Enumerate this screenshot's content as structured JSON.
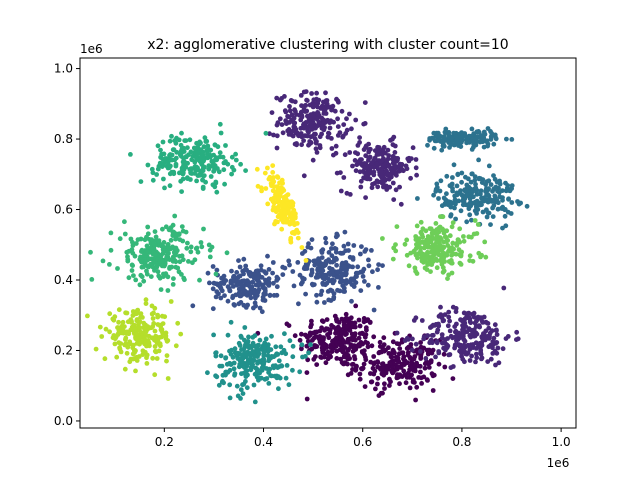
{
  "chart_data": {
    "type": "scatter",
    "title": "x2: agglomerative clustering with cluster count=10",
    "xlabel": "",
    "ylabel": "",
    "x_offset_label": "1e6",
    "y_offset_label": "1e6",
    "xlim": [
      0.03,
      1.03
    ],
    "ylim": [
      -0.02,
      1.03
    ],
    "x_ticks": [
      {
        "value": 0.2,
        "label": "0.2"
      },
      {
        "value": 0.4,
        "label": "0.4"
      },
      {
        "value": 0.6,
        "label": "0.6"
      },
      {
        "value": 0.8,
        "label": "0.8"
      },
      {
        "value": 1.0,
        "label": "1.0"
      }
    ],
    "y_ticks": [
      {
        "value": 0.0,
        "label": "0.0"
      },
      {
        "value": 0.2,
        "label": "0.2"
      },
      {
        "value": 0.4,
        "label": "0.4"
      },
      {
        "value": 0.6,
        "label": "0.6"
      },
      {
        "value": 0.8,
        "label": "0.8"
      },
      {
        "value": 1.0,
        "label": "1.0"
      }
    ],
    "grid": false,
    "legend": "none",
    "clusters": [
      {
        "color": "#440154",
        "blobs": [
          {
            "cx": 0.55,
            "cy": 0.23,
            "sx": 0.04,
            "sy": 0.04,
            "n": 230
          },
          {
            "cx": 0.67,
            "cy": 0.16,
            "sx": 0.04,
            "sy": 0.035,
            "n": 220
          }
        ]
      },
      {
        "color": "#482878",
        "blobs": [
          {
            "cx": 0.5,
            "cy": 0.85,
            "sx": 0.035,
            "sy": 0.04,
            "n": 220
          },
          {
            "cx": 0.63,
            "cy": 0.72,
            "sx": 0.035,
            "sy": 0.035,
            "n": 200
          },
          {
            "cx": 0.81,
            "cy": 0.24,
            "sx": 0.045,
            "sy": 0.04,
            "n": 240
          }
        ]
      },
      {
        "color": "#3b528b",
        "blobs": [
          {
            "cx": 0.37,
            "cy": 0.39,
            "sx": 0.035,
            "sy": 0.03,
            "n": 190
          },
          {
            "cx": 0.54,
            "cy": 0.43,
            "sx": 0.04,
            "sy": 0.04,
            "n": 220
          }
        ]
      },
      {
        "color": "#2c728e",
        "blobs": [
          {
            "cx": 0.8,
            "cy": 0.8,
            "sx": 0.035,
            "sy": 0.012,
            "n": 160
          },
          {
            "cx": 0.83,
            "cy": 0.64,
            "sx": 0.04,
            "sy": 0.035,
            "n": 210
          }
        ]
      },
      {
        "color": "#21918c",
        "blobs": [
          {
            "cx": 0.38,
            "cy": 0.17,
            "sx": 0.04,
            "sy": 0.04,
            "n": 230
          }
        ]
      },
      {
        "color": "#28ae80",
        "blobs": [
          {
            "cx": 0.26,
            "cy": 0.74,
            "sx": 0.04,
            "sy": 0.035,
            "n": 220
          }
        ]
      },
      {
        "color": "#35b779",
        "blobs": [
          {
            "cx": 0.19,
            "cy": 0.47,
            "sx": 0.045,
            "sy": 0.04,
            "n": 230
          }
        ]
      },
      {
        "color": "#6ece58",
        "blobs": [
          {
            "cx": 0.75,
            "cy": 0.49,
            "sx": 0.04,
            "sy": 0.035,
            "n": 210
          }
        ]
      },
      {
        "color": "#b5de2b",
        "blobs": [
          {
            "cx": 0.15,
            "cy": 0.24,
            "sx": 0.035,
            "sy": 0.035,
            "n": 210
          }
        ]
      },
      {
        "color": "#fde725",
        "blobs": [
          {
            "cx": 0.44,
            "cy": 0.61,
            "sx": 0.012,
            "sy": 0.045,
            "n": 150,
            "tilt": -0.28
          }
        ]
      }
    ]
  }
}
